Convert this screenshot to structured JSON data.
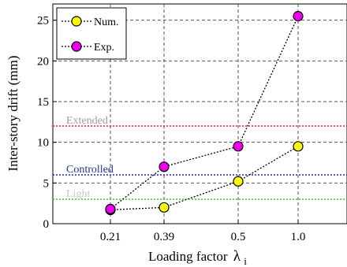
{
  "chart_data": {
    "type": "line",
    "xlabel": "Loading factor",
    "xlabel_symbol": "λ",
    "xlabel_subscript": "i",
    "ylabel": "Inter-story drift (mm)",
    "categories": [
      "0.21",
      "0.39",
      "0.5",
      "1.0"
    ],
    "ylim": [
      0,
      27
    ],
    "yticks": [
      0,
      5,
      10,
      15,
      20,
      25
    ],
    "grid": true,
    "legend_position": "top-left",
    "series": [
      {
        "name": "Num.",
        "values": [
          1.7,
          2.0,
          5.2,
          9.5
        ],
        "color": "#ffff00"
      },
      {
        "name": "Exp.",
        "values": [
          1.8,
          7.0,
          9.5,
          25.5
        ],
        "color": "#ee00ee"
      }
    ],
    "reference_lines": [
      {
        "label": "Extended",
        "value": 12,
        "color": "#ee2222",
        "text_color": "#a0a0a0"
      },
      {
        "label": "Controlled",
        "value": 6,
        "color": "#2222dd",
        "text_color": "#223399"
      },
      {
        "label": "Light",
        "value": 3,
        "color": "#33cc33",
        "text_color": "#c8c8c8"
      }
    ]
  }
}
